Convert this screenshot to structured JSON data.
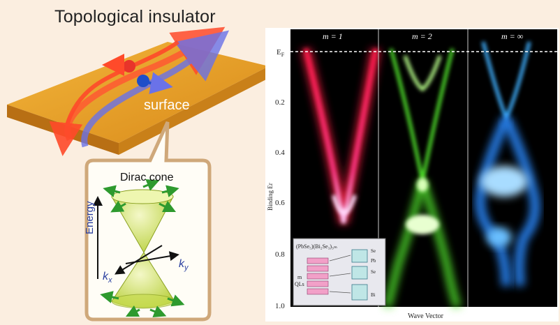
{
  "left_panel": {
    "title": "Topological insulator",
    "surface_label": "surface",
    "dirac_title": "Dirac cone",
    "energy_label": "Energy",
    "kx_label": "k",
    "kx_sub": "x",
    "ky_label": "k",
    "ky_sub": "y"
  },
  "right_panel": {
    "ef_label": "E",
    "ef_sub": "F",
    "y_axis_label": "Binding Er",
    "x_axis_label": "Wave Vector",
    "y_ticks": [
      "0.2",
      "0.4",
      "0.6",
      "0.8",
      "1.0"
    ],
    "subpanels": [
      {
        "label": "m = 1",
        "color": "#ff2a55"
      },
      {
        "label": "m = 2",
        "color": "#6cff3a"
      },
      {
        "label": "m = ∞",
        "color": "#3fb0ff"
      }
    ],
    "inset": {
      "formula": "(PbSe₅)(Bi₂Se₃)₃ₘ",
      "m_label": "m",
      "qls_label": "QLs",
      "legend": [
        "Se",
        "Pb",
        "Se",
        "Bi"
      ]
    }
  },
  "colors": {
    "background": "#fbeee0",
    "slab_top": "#e9a229",
    "slab_side": "#c27a18",
    "red_arrow": "#ff4a2a",
    "blue_arrow": "#5a62d8",
    "cone": "#d6e86a",
    "cone_arrow": "#2e9a2e"
  }
}
